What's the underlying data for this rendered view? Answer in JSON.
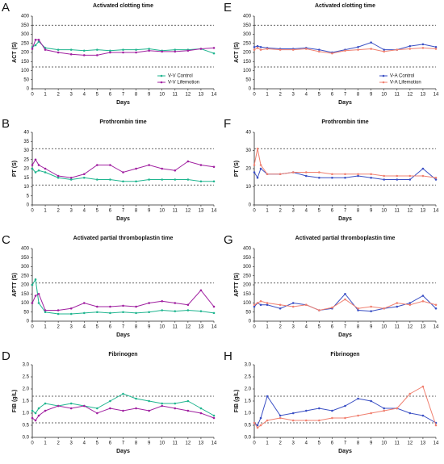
{
  "chart_data": [
    {
      "panel_label": "A",
      "type": "line",
      "title": "Activated clotting time",
      "xlabel": "Days",
      "ylabel": "ACT (S)",
      "x": [
        0,
        0.25,
        0.5,
        1,
        2,
        3,
        4,
        5,
        6,
        7,
        8,
        9,
        10,
        11,
        12,
        13,
        14
      ],
      "xlim": [
        0,
        14
      ],
      "xticks": [
        0,
        1,
        2,
        3,
        4,
        5,
        6,
        7,
        8,
        9,
        10,
        11,
        12,
        13,
        14
      ],
      "ylim": [
        0,
        400
      ],
      "yticks": [
        0,
        50,
        100,
        150,
        200,
        250,
        300,
        350,
        400
      ],
      "reference_lines": [
        120,
        350
      ],
      "legend": true,
      "series": [
        {
          "name": "V-V Control",
          "color": "#1fb58f",
          "values": [
            230,
            240,
            260,
            225,
            215,
            215,
            210,
            215,
            210,
            215,
            215,
            220,
            210,
            215,
            215,
            220,
            195
          ]
        },
        {
          "name": "V-V Lifemotion",
          "color": "#a020a0",
          "values": [
            220,
            270,
            270,
            215,
            200,
            190,
            185,
            185,
            200,
            200,
            200,
            210,
            205,
            205,
            210,
            220,
            225
          ]
        }
      ]
    },
    {
      "panel_label": "E",
      "type": "line",
      "title": "Activated clotting time",
      "xlabel": "Days",
      "ylabel": "ACT (S)",
      "x": [
        0,
        0.25,
        0.5,
        1,
        2,
        3,
        4,
        5,
        6,
        7,
        8,
        9,
        10,
        11,
        12,
        13,
        14
      ],
      "xlim": [
        0,
        14
      ],
      "xticks": [
        0,
        1,
        2,
        3,
        4,
        5,
        6,
        7,
        8,
        9,
        10,
        11,
        12,
        13,
        14
      ],
      "ylim": [
        0,
        400
      ],
      "yticks": [
        0,
        50,
        100,
        150,
        200,
        250,
        300,
        350,
        400
      ],
      "reference_lines": [
        120,
        350
      ],
      "legend": true,
      "series": [
        {
          "name": "V-A Control",
          "color": "#3a4fc4",
          "values": [
            230,
            235,
            230,
            225,
            220,
            220,
            225,
            215,
            200,
            215,
            230,
            255,
            215,
            215,
            235,
            245,
            230
          ]
        },
        {
          "name": "V-A Lifemotion",
          "color": "#f08070",
          "values": [
            215,
            225,
            215,
            220,
            215,
            215,
            220,
            205,
            195,
            210,
            215,
            220,
            205,
            215,
            220,
            225,
            220
          ]
        }
      ]
    },
    {
      "panel_label": "B",
      "type": "line",
      "title": "Prothrombin time",
      "xlabel": "Days",
      "ylabel": "PT (S)",
      "x": [
        0,
        0.25,
        0.5,
        1,
        2,
        3,
        4,
        5,
        6,
        7,
        8,
        9,
        10,
        11,
        12,
        13,
        14
      ],
      "xlim": [
        0,
        14
      ],
      "xticks": [
        0,
        1,
        2,
        3,
        4,
        5,
        6,
        7,
        8,
        9,
        10,
        11,
        12,
        13,
        14
      ],
      "ylim": [
        0,
        40
      ],
      "yticks": [
        0,
        5,
        10,
        15,
        20,
        25,
        30,
        35,
        40
      ],
      "reference_lines": [
        11,
        31
      ],
      "legend": false,
      "series": [
        {
          "color": "#1fb58f",
          "values": [
            20,
            18,
            19,
            18,
            15,
            14,
            15,
            14,
            14,
            13,
            13,
            14,
            14,
            14,
            14,
            13,
            13
          ]
        },
        {
          "color": "#a020a0",
          "values": [
            22,
            25,
            22,
            20,
            16,
            15,
            17,
            22,
            22,
            18,
            20,
            22,
            20,
            19,
            24,
            22,
            21
          ]
        }
      ]
    },
    {
      "panel_label": "F",
      "type": "line",
      "title": "Prothrombin time",
      "xlabel": "Days",
      "ylabel": "PT (S)",
      "x": [
        0,
        0.25,
        0.5,
        1,
        2,
        3,
        4,
        5,
        6,
        7,
        8,
        9,
        10,
        11,
        12,
        13,
        14
      ],
      "xlim": [
        0,
        14
      ],
      "xticks": [
        0,
        1,
        2,
        3,
        4,
        5,
        6,
        7,
        8,
        9,
        10,
        11,
        12,
        13,
        14
      ],
      "ylim": [
        0,
        40
      ],
      "yticks": [
        0,
        10,
        20,
        30,
        40
      ],
      "reference_lines": [
        11,
        31
      ],
      "legend": false,
      "series": [
        {
          "color": "#3a4fc4",
          "values": [
            18,
            15,
            20,
            17,
            17,
            18,
            16,
            15,
            15,
            15,
            16,
            15,
            14,
            14,
            14,
            20,
            14
          ]
        },
        {
          "color": "#f08070",
          "values": [
            22,
            31,
            22,
            17,
            17,
            18,
            18,
            18,
            17,
            17,
            17,
            17,
            16,
            16,
            16,
            16,
            15
          ]
        }
      ]
    },
    {
      "panel_label": "C",
      "type": "line",
      "title": "Activated partial thromboplastin time",
      "xlabel": "Days",
      "ylabel": "APTT (S)",
      "x": [
        0,
        0.25,
        0.5,
        1,
        2,
        3,
        4,
        5,
        6,
        7,
        8,
        9,
        10,
        11,
        12,
        13,
        14
      ],
      "xlim": [
        0,
        14
      ],
      "xticks": [
        0,
        1,
        2,
        3,
        4,
        5,
        6,
        7,
        8,
        9,
        10,
        11,
        12,
        13,
        14
      ],
      "ylim": [
        0,
        400
      ],
      "yticks": [
        0,
        50,
        100,
        150,
        200,
        250,
        300,
        350,
        400
      ],
      "reference_lines": [
        210
      ],
      "legend": false,
      "series": [
        {
          "color": "#1fb58f",
          "values": [
            200,
            230,
            100,
            50,
            40,
            40,
            45,
            50,
            45,
            50,
            45,
            50,
            60,
            55,
            60,
            55,
            45
          ]
        },
        {
          "color": "#a020a0",
          "values": [
            100,
            140,
            150,
            60,
            60,
            70,
            100,
            80,
            80,
            85,
            80,
            100,
            110,
            100,
            90,
            170,
            80
          ]
        }
      ]
    },
    {
      "panel_label": "G",
      "type": "line",
      "title": "Activated partial thromboplastin time",
      "xlabel": "Days",
      "ylabel": "APTT (S)",
      "x": [
        0,
        0.25,
        0.5,
        1,
        2,
        3,
        4,
        5,
        6,
        7,
        8,
        9,
        10,
        11,
        12,
        13,
        14
      ],
      "xlim": [
        0,
        14
      ],
      "xticks": [
        0,
        1,
        2,
        3,
        4,
        5,
        6,
        7,
        8,
        9,
        10,
        11,
        12,
        13,
        14
      ],
      "ylim": [
        0,
        400
      ],
      "yticks": [
        0,
        50,
        100,
        150,
        200,
        250,
        300,
        350,
        400
      ],
      "reference_lines": [
        210
      ],
      "legend": false,
      "series": [
        {
          "color": "#3a4fc4",
          "values": [
            80,
            100,
            90,
            90,
            70,
            100,
            90,
            60,
            70,
            150,
            60,
            55,
            70,
            80,
            100,
            140,
            70
          ]
        },
        {
          "color": "#f08070",
          "values": [
            90,
            100,
            110,
            100,
            90,
            80,
            90,
            60,
            75,
            120,
            70,
            80,
            70,
            100,
            90,
            110,
            90
          ]
        }
      ]
    },
    {
      "panel_label": "D",
      "type": "line",
      "title": "Fibrinogen",
      "xlabel": "Days",
      "ylabel": "FIB (g/L)",
      "x": [
        0,
        0.25,
        0.5,
        1,
        2,
        3,
        4,
        5,
        6,
        7,
        8,
        9,
        10,
        11,
        12,
        13,
        14
      ],
      "xlim": [
        0,
        14
      ],
      "xticks": [
        0,
        1,
        2,
        3,
        4,
        5,
        6,
        7,
        8,
        9,
        10,
        11,
        12,
        13,
        14
      ],
      "ylim": [
        0,
        3
      ],
      "yticks": [
        {
          "value": 0,
          "label": "0.0"
        },
        0.5,
        {
          "value": 1,
          "label": "1.0"
        },
        1.5,
        {
          "value": 2,
          "label": "2.0"
        },
        2.5,
        {
          "value": 3,
          "label": "3.0"
        }
      ],
      "reference_lines": [
        0.6,
        1.7
      ],
      "legend": false,
      "series": [
        {
          "color": "#1fb58f",
          "values": [
            1.1,
            1.0,
            1.2,
            1.4,
            1.3,
            1.4,
            1.3,
            1.2,
            1.5,
            1.8,
            1.6,
            1.5,
            1.4,
            1.4,
            1.5,
            1.2,
            0.9
          ]
        },
        {
          "color": "#a020a0",
          "values": [
            0.8,
            0.7,
            0.9,
            1.1,
            1.3,
            1.2,
            1.3,
            1.0,
            1.2,
            1.1,
            1.2,
            1.1,
            1.3,
            1.2,
            1.1,
            1.0,
            0.8
          ]
        }
      ]
    },
    {
      "panel_label": "H",
      "type": "line",
      "title": "Fibrinogen",
      "xlabel": "Days",
      "ylabel": "FIB (g/L)",
      "x": [
        0,
        0.25,
        0.5,
        1,
        2,
        3,
        4,
        5,
        6,
        7,
        8,
        9,
        10,
        11,
        12,
        13,
        14
      ],
      "xlim": [
        0,
        14
      ],
      "xticks": [
        0,
        1,
        2,
        3,
        4,
        5,
        6,
        7,
        8,
        9,
        10,
        11,
        12,
        13,
        14
      ],
      "ylim": [
        0,
        3
      ],
      "yticks": [
        {
          "value": 0,
          "label": "0.0"
        },
        0.5,
        {
          "value": 1,
          "label": "1.0"
        },
        1.5,
        {
          "value": 2,
          "label": "2.0"
        },
        2.5,
        {
          "value": 3,
          "label": "3.0"
        }
      ],
      "reference_lines": [
        0.6,
        1.7
      ],
      "legend": false,
      "series": [
        {
          "color": "#3a4fc4",
          "values": [
            0.6,
            0.5,
            0.8,
            1.7,
            0.9,
            1.0,
            1.1,
            1.2,
            1.1,
            1.3,
            1.6,
            1.5,
            1.2,
            1.2,
            1.0,
            0.9,
            0.6
          ]
        },
        {
          "color": "#f08070",
          "values": [
            0.6,
            0.4,
            0.5,
            0.7,
            0.8,
            0.7,
            0.7,
            0.7,
            0.8,
            0.8,
            0.9,
            1.0,
            1.1,
            1.2,
            1.8,
            2.1,
            0.5
          ]
        }
      ]
    }
  ]
}
